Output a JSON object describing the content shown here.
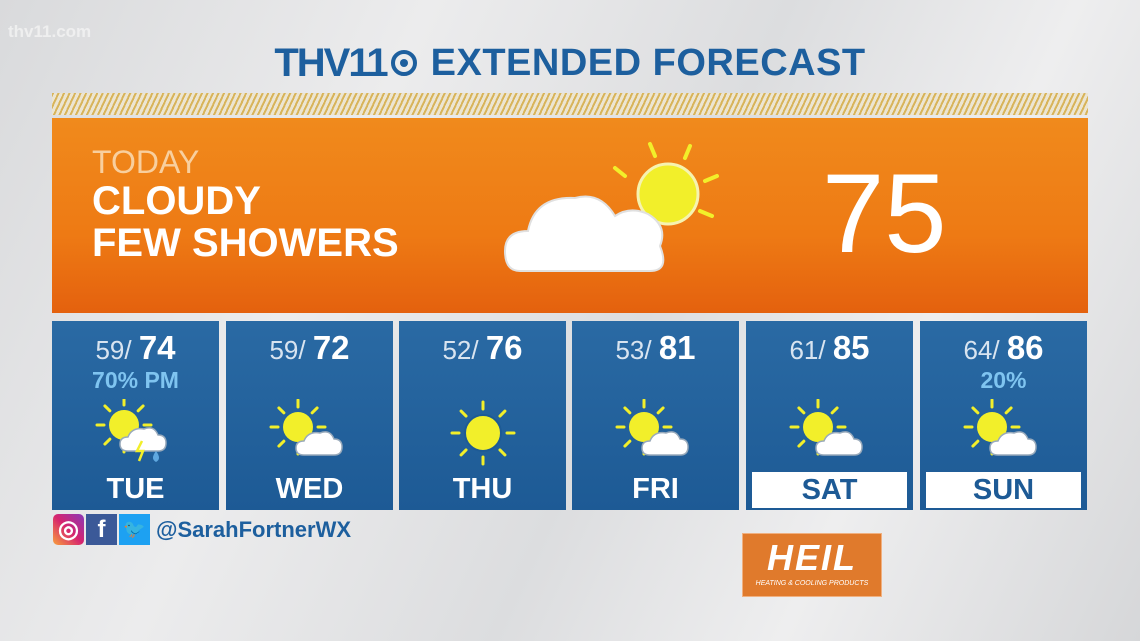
{
  "watermark": "thv11.com",
  "header": {
    "logo": "THV11",
    "title": "EXTENDED FORECAST"
  },
  "today": {
    "label": "TODAY",
    "condition_line1": "CLOUDY",
    "condition_line2": "FEW SHOWERS",
    "temp": "75",
    "icon": "partly-cloudy-icon"
  },
  "days": [
    {
      "day": "TUE",
      "low": "59",
      "high": "74",
      "precip": "70% PM",
      "icon": "storm",
      "boxed": false
    },
    {
      "day": "WED",
      "low": "59",
      "high": "72",
      "precip": "",
      "icon": "partly",
      "boxed": false
    },
    {
      "day": "THU",
      "low": "52",
      "high": "76",
      "precip": "",
      "icon": "sun",
      "boxed": false
    },
    {
      "day": "FRI",
      "low": "53",
      "high": "81",
      "precip": "",
      "icon": "partly",
      "boxed": false
    },
    {
      "day": "SAT",
      "low": "61",
      "high": "85",
      "precip": "",
      "icon": "partly",
      "boxed": true
    },
    {
      "day": "SUN",
      "low": "64",
      "high": "86",
      "precip": "20%",
      "icon": "partly",
      "boxed": true
    }
  ],
  "social": {
    "handle": "@SarahFortnerWX"
  },
  "sponsor": {
    "name": "HEIL",
    "tagline": "HEATING & COOLING PRODUCTS"
  },
  "colors": {
    "orange": "#ee7a14",
    "blue": "#1d5a95",
    "sun": "#f2ef2a",
    "precip": "#7fc4f0"
  }
}
